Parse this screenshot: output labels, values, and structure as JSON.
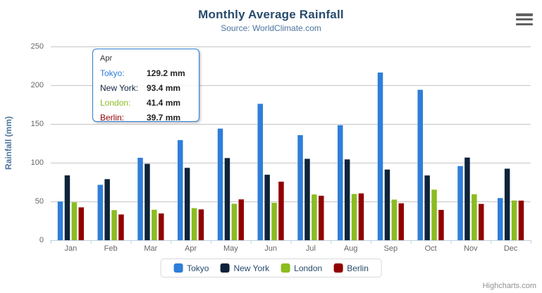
{
  "chart_data": {
    "type": "bar",
    "title": "Monthly Average Rainfall",
    "subtitle": "Source: WorldClimate.com",
    "xlabel": "",
    "ylabel": "Rainfall (mm)",
    "ylim": [
      0,
      250
    ],
    "yticks": [
      0,
      50,
      100,
      150,
      200,
      250
    ],
    "grid": true,
    "legend_position": "bottom",
    "categories": [
      "Jan",
      "Feb",
      "Mar",
      "Apr",
      "May",
      "Jun",
      "Jul",
      "Aug",
      "Sep",
      "Oct",
      "Nov",
      "Dec"
    ],
    "series": [
      {
        "name": "Tokyo",
        "color": "#2f7ed8",
        "values": [
          49.9,
          71.5,
          106.4,
          129.2,
          144.0,
          176.0,
          135.6,
          148.5,
          216.4,
          194.1,
          95.6,
          54.4
        ]
      },
      {
        "name": "New York",
        "color": "#0d233a",
        "values": [
          83.6,
          78.8,
          98.5,
          93.4,
          106.0,
          84.5,
          105.0,
          104.3,
          91.2,
          83.5,
          106.6,
          92.3
        ]
      },
      {
        "name": "London",
        "color": "#8bbc21",
        "values": [
          48.9,
          38.8,
          39.3,
          41.4,
          47.0,
          48.3,
          59.0,
          59.6,
          52.4,
          65.2,
          59.3,
          51.2
        ]
      },
      {
        "name": "Berlin",
        "color": "#910000",
        "values": [
          42.4,
          33.2,
          34.5,
          39.7,
          52.6,
          75.5,
          57.4,
          60.4,
          47.6,
          39.1,
          46.8,
          51.1
        ]
      }
    ]
  },
  "tooltip": {
    "heading": "Apr",
    "border_color": "#2f7ed8",
    "rows": [
      {
        "label": "Tokyo:",
        "value": "129.2 mm",
        "color": "#2f7ed8"
      },
      {
        "label": "New York:",
        "value": "93.4 mm",
        "color": "#0d233a"
      },
      {
        "label": "London:",
        "value": "41.4 mm",
        "color": "#8bbc21"
      },
      {
        "label": "Berlin:",
        "value": "39.7 mm",
        "color": "#910000"
      }
    ]
  },
  "legend": {
    "items": [
      {
        "label": "Tokyo",
        "color": "#2f7ed8"
      },
      {
        "label": "New York",
        "color": "#0d233a"
      },
      {
        "label": "London",
        "color": "#8bbc21"
      },
      {
        "label": "Berlin",
        "color": "#910000"
      }
    ]
  },
  "credits": {
    "label": "Highcharts.com"
  },
  "colors": {
    "gridline": "#c6c6c6",
    "axis_line": "#c0d0e0",
    "title": "#274b6d",
    "subtitle": "#4d759e",
    "axis_labels": "#666666"
  }
}
